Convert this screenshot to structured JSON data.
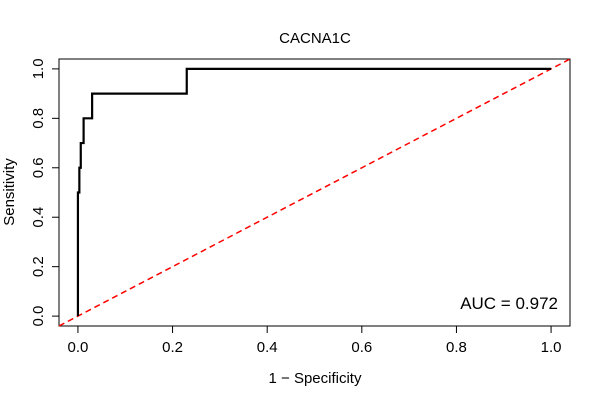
{
  "chart_data": {
    "type": "line",
    "title": "CACNA1C",
    "xlabel": "1 − Specificity",
    "ylabel": "Sensitivity",
    "xlim": [
      -0.04,
      1.04
    ],
    "ylim": [
      -0.04,
      1.04
    ],
    "x_ticks": [
      0.0,
      0.2,
      0.4,
      0.6,
      0.8,
      1.0
    ],
    "x_tick_labels": [
      "0.0",
      "0.2",
      "0.4",
      "0.6",
      "0.8",
      "1.0"
    ],
    "y_ticks": [
      0.0,
      0.2,
      0.4,
      0.6,
      0.8,
      1.0
    ],
    "y_tick_labels": [
      "0.0",
      "0.2",
      "0.4",
      "0.6",
      "0.8",
      "1.0"
    ],
    "grid": false,
    "annotation": "AUC = 0.972",
    "series": [
      {
        "color": "#000000",
        "style": "solid",
        "x": [
          0.0,
          0.0,
          0.003,
          0.003,
          0.006,
          0.006,
          0.012,
          0.012,
          0.018,
          0.018,
          0.03,
          0.03,
          0.23,
          0.23,
          1.0
        ],
        "y": [
          0.0,
          0.5,
          0.5,
          0.6,
          0.6,
          0.7,
          0.7,
          0.8,
          0.8,
          0.8,
          0.8,
          0.9,
          0.9,
          1.0,
          1.0
        ]
      },
      {
        "color": "#ff0000",
        "style": "dashed",
        "x": [
          -0.04,
          1.04
        ],
        "y": [
          -0.04,
          1.04
        ]
      }
    ]
  }
}
